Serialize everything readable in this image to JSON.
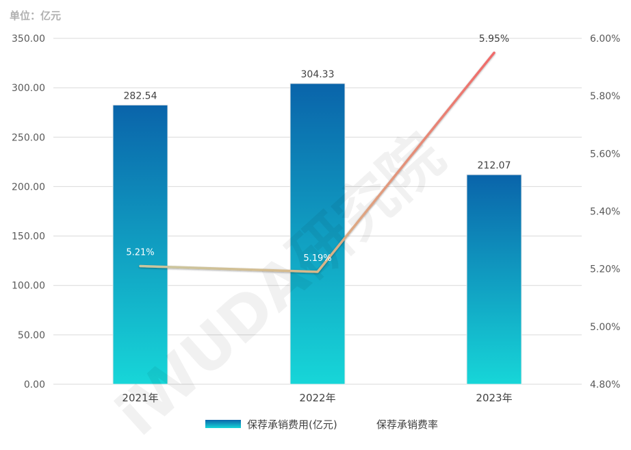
{
  "unit_label": "单位：亿元",
  "watermark": "iWUDA研究院",
  "chart_data": {
    "type": "bar",
    "categories": [
      "2021年",
      "2022年",
      "2023年"
    ],
    "series": [
      {
        "name": "保荐承销费用(亿元)",
        "type": "bar",
        "axis": "left",
        "values": [
          282.54,
          304.33,
          212.07
        ],
        "labels": [
          "282.54",
          "304.33",
          "212.07"
        ],
        "color_top": "#0a64aa",
        "color_bottom": "#17d6d8"
      },
      {
        "name": "保荐承销费率",
        "type": "line",
        "axis": "right",
        "values": [
          5.21,
          5.19,
          5.95
        ],
        "labels": [
          "5.21%",
          "5.19%",
          "5.95%"
        ],
        "color_start": "#c9c7a0",
        "color_end": "#f06a6a"
      }
    ],
    "left_axis": {
      "ylim": [
        0,
        350
      ],
      "ticks": [
        "0.00",
        "50.00",
        "100.00",
        "150.00",
        "200.00",
        "250.00",
        "300.00",
        "350.00"
      ]
    },
    "right_axis": {
      "ylim": [
        4.8,
        6.0
      ],
      "ticks": [
        "4.80%",
        "5.00%",
        "5.20%",
        "5.40%",
        "5.60%",
        "5.80%",
        "6.00%"
      ]
    },
    "grid": true,
    "legend_position": "bottom"
  }
}
